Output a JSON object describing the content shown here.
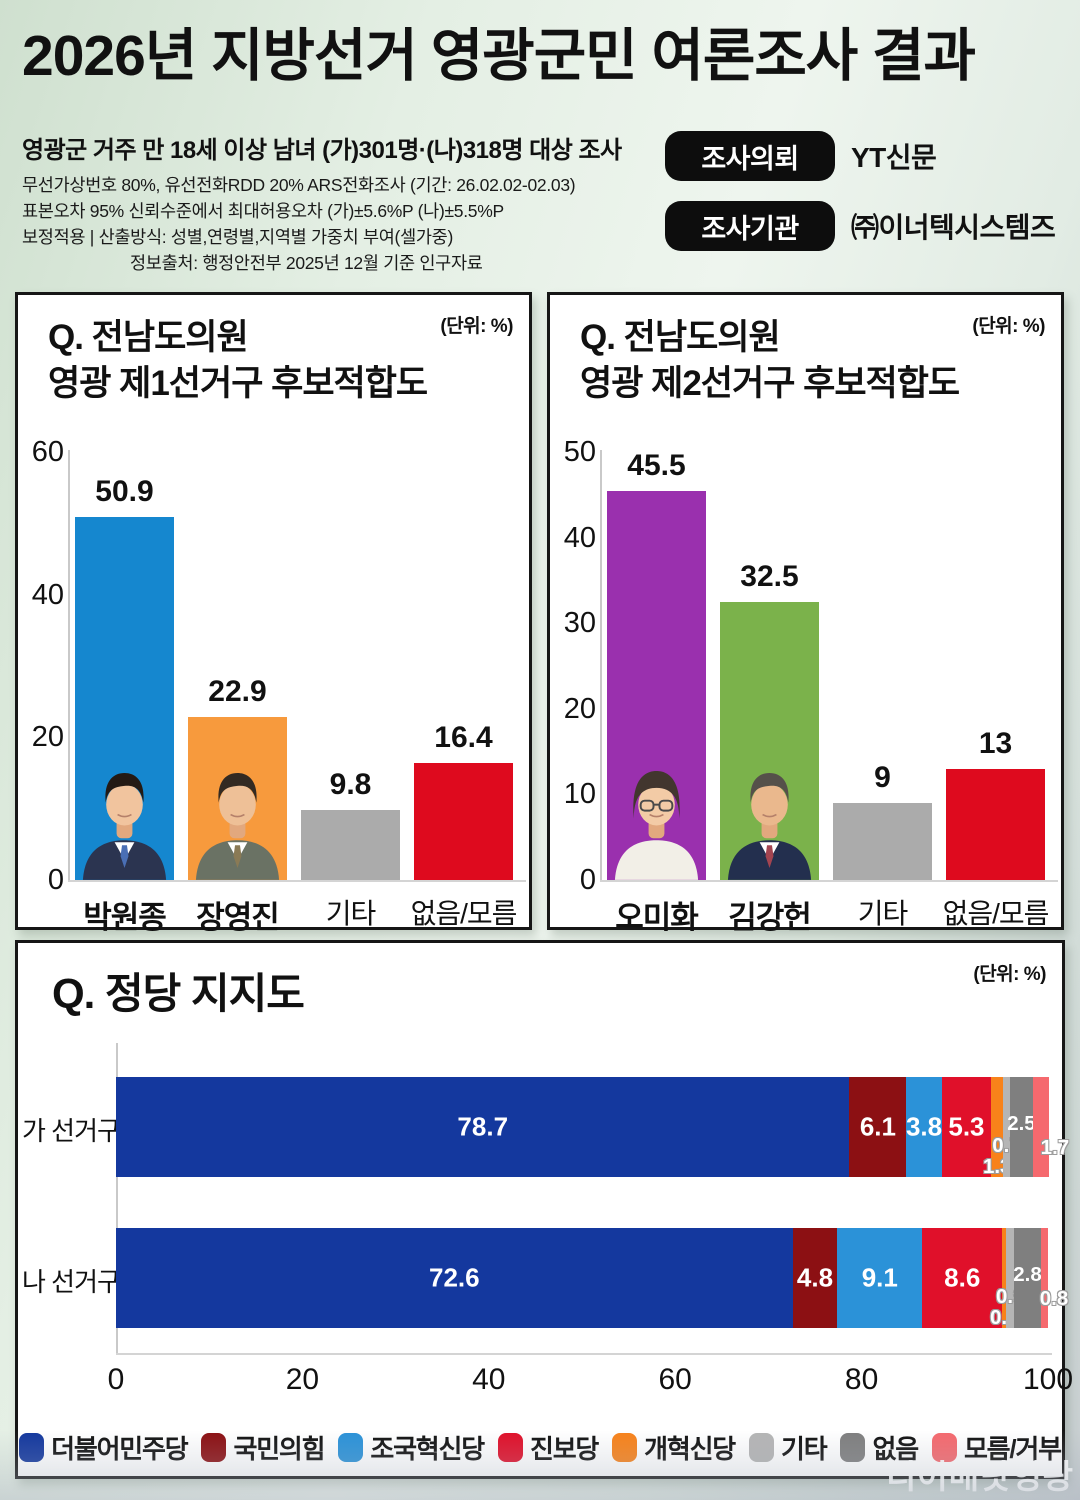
{
  "header": {
    "title_strong": "2026년 지방선거",
    "title_rest": "영광군민 여론조사 결과",
    "subtitle": "영광군 거주 만 18세 이상 남녀 (가)301명·(나)318명 대상 조사",
    "info_lines": [
      "무선가상번호 80%, 유선전화RDD 20% ARS전화조사 (기간: 26.02.02-02.03)",
      "표본오차 95% 신뢰수준에서 최대허용오차 (가)±5.6%P (나)±5.5%P",
      "보정적용 | 산출방식: 성별,연령별,지역별 가중치 부여(셀가중)",
      "정보출처: 행정안전부 2025년 12월 기준 인구자료"
    ],
    "badges": [
      {
        "label": "조사의뢰",
        "value": "YT신문"
      },
      {
        "label": "조사기관",
        "value": "㈜이너텍시스템즈"
      }
    ]
  },
  "watermark": {
    "text": "디어매닷영광"
  },
  "chart_data": [
    {
      "type": "bar",
      "title_line1": "Q. 전남도의원",
      "title_line2": "영광 제1선거구 후보적합도",
      "unit_label": "(단위: %)",
      "categories": [
        "박원종",
        "장영진",
        "기타",
        "없음/모름"
      ],
      "values": [
        50.9,
        22.9,
        9.8,
        16.4
      ],
      "colors": [
        "#1587cf",
        "#f79a3d",
        "#ababab",
        "#de0a1e"
      ],
      "emphasis": [
        true,
        true,
        false,
        false
      ],
      "photos": [
        "park-wonjong",
        "jang-yeongjin",
        null,
        null
      ],
      "ylim": [
        0,
        60
      ],
      "yticks": [
        0,
        20,
        40,
        60
      ],
      "grid": false,
      "legend_position": "none"
    },
    {
      "type": "bar",
      "title_line1": "Q. 전남도의원",
      "title_line2": "영광 제2선거구 후보적합도",
      "unit_label": "(단위: %)",
      "categories": [
        "오미화",
        "김강헌",
        "기타",
        "없음/모름"
      ],
      "values": [
        45.5,
        32.5,
        9,
        13
      ],
      "colors": [
        "#9a30ae",
        "#7bb24b",
        "#ababab",
        "#de0a1e"
      ],
      "emphasis": [
        true,
        true,
        false,
        false
      ],
      "photos": [
        "oh-mihwa",
        "kim-gangheon",
        null,
        null
      ],
      "ylim": [
        0,
        50
      ],
      "yticks": [
        0,
        10,
        20,
        30,
        40,
        50
      ],
      "grid": false,
      "legend_position": "none"
    },
    {
      "type": "stacked-bar-horizontal",
      "title": "Q. 정당 지지도",
      "unit_label": "(단위: %)",
      "categories": [
        "가 선거구",
        "나 선거구"
      ],
      "series": [
        {
          "name": "더불어민주당",
          "color": "#14389e",
          "values": [
            78.7,
            72.6
          ]
        },
        {
          "name": "국민의힘",
          "color": "#8c1013",
          "values": [
            6.1,
            4.8
          ]
        },
        {
          "name": "조국혁신당",
          "color": "#2b92d8",
          "values": [
            3.8,
            9.1
          ]
        },
        {
          "name": "진보당",
          "color": "#e0102a",
          "values": [
            5.3,
            8.6
          ]
        },
        {
          "name": "개혁신당",
          "color": "#f8821a",
          "values": [
            1.3,
            0.4
          ]
        },
        {
          "name": "기타",
          "color": "#b5b5b5",
          "values": [
            0.7,
            0.9
          ]
        },
        {
          "name": "없음",
          "color": "#7f7f7f",
          "values": [
            2.5,
            2.8
          ]
        },
        {
          "name": "모름/거부",
          "color": "#f5696e",
          "values": [
            1.7,
            0.8
          ]
        }
      ],
      "xlim": [
        0,
        100
      ],
      "xticks": [
        0,
        20,
        40,
        60,
        80,
        100
      ],
      "grid": false,
      "legend_position": "bottom"
    }
  ]
}
